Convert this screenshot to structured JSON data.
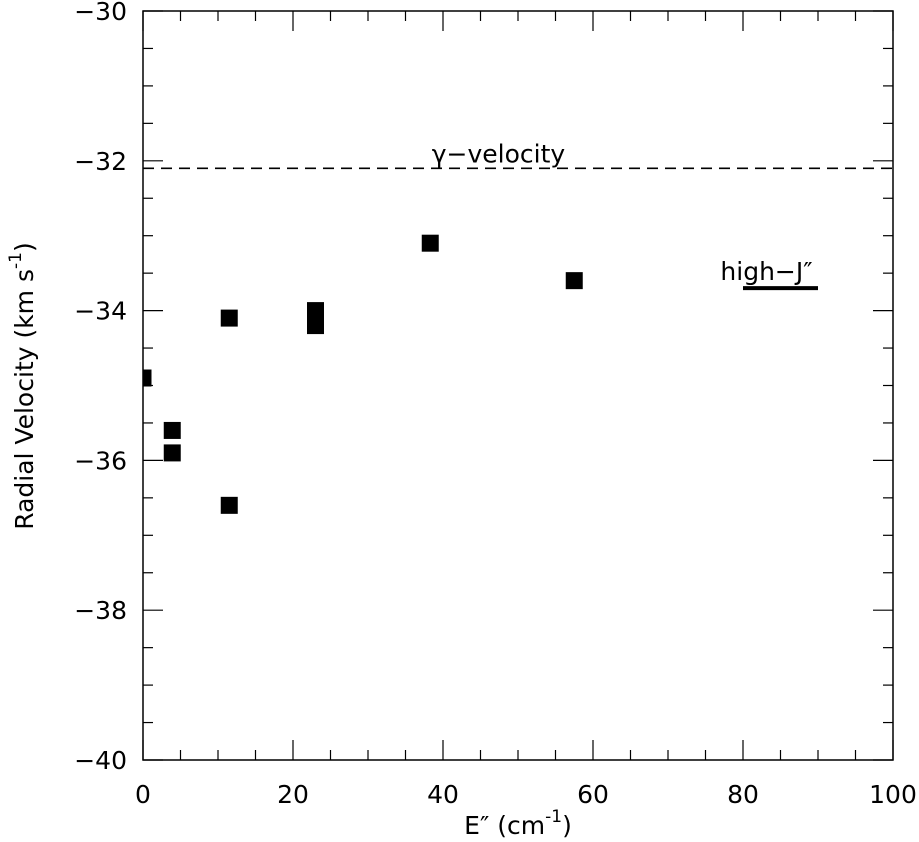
{
  "chart_data": {
    "type": "scatter",
    "xlabel": "E″ (cm",
    "xlabel_sup": "-1",
    "xlabel_tail": ")",
    "ylabel": "Radial Velocity (km s",
    "ylabel_sup": "-1",
    "ylabel_tail": ")",
    "xlim": [
      0,
      100
    ],
    "ylim": [
      -40,
      -30
    ],
    "x_ticks": [
      0,
      20,
      40,
      60,
      80,
      100
    ],
    "x_tick_labels": [
      "0",
      "20",
      "40",
      "60",
      "80",
      "100"
    ],
    "y_ticks": [
      -40,
      -38,
      -36,
      -34,
      -32,
      -30
    ],
    "y_tick_labels": [
      "−40",
      "−38",
      "−36",
      "−34",
      "−32",
      "−30"
    ],
    "grid": false,
    "points": [
      {
        "x": 0.0,
        "y": -34.9
      },
      {
        "x": 3.9,
        "y": -35.6
      },
      {
        "x": 3.9,
        "y": -35.9
      },
      {
        "x": 11.5,
        "y": -34.1
      },
      {
        "x": 11.5,
        "y": -36.6
      },
      {
        "x": 23.0,
        "y": -34.0
      },
      {
        "x": 23.0,
        "y": -34.2
      },
      {
        "x": 38.3,
        "y": -33.1
      },
      {
        "x": 57.5,
        "y": -33.6
      }
    ],
    "reference_line": {
      "label": "γ−velocity",
      "y": -32.1,
      "style": "dashed"
    },
    "high_j_marker": {
      "label": "high−J″",
      "x_start": 80,
      "x_end": 90,
      "y": -33.7
    }
  }
}
